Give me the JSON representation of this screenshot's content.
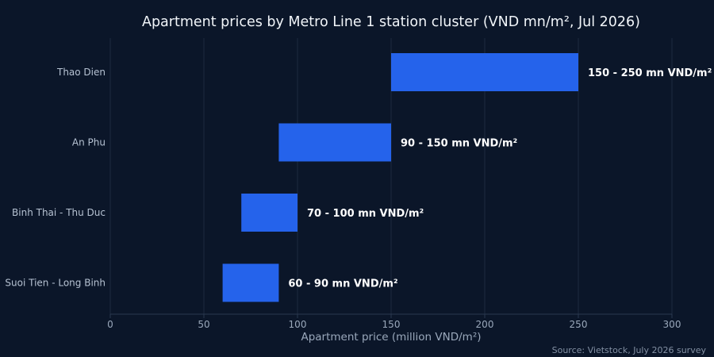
{
  "chart_data": {
    "type": "bar",
    "orientation": "horizontal",
    "title": "Apartment prices by Metro Line 1 station cluster (VND mn/m², Jul 2026)",
    "xlabel": "Apartment price (million VND/m²)",
    "ylabel": "",
    "xlim": [
      0,
      300
    ],
    "xticks": [
      0,
      50,
      100,
      150,
      200,
      250,
      300
    ],
    "grid": true,
    "bar_color": "#2563eb",
    "categories": [
      "Thao Dien",
      "An Phu",
      "Binh Thai - Thu Duc",
      "Suoi Tien - Long Binh"
    ],
    "ranges": [
      {
        "category": "Thao Dien",
        "low": 150,
        "high": 250,
        "label": "150 - 250 mn VND/m²"
      },
      {
        "category": "An Phu",
        "low": 90,
        "high": 150,
        "label": "90 - 150 mn VND/m²"
      },
      {
        "category": "Binh Thai - Thu Duc",
        "low": 70,
        "high": 100,
        "label": "70 - 100 mn VND/m²"
      },
      {
        "category": "Suoi Tien - Long Binh",
        "low": 60,
        "high": 90,
        "label": "60 - 90 mn VND/m²"
      }
    ],
    "source": "Source: Vietstock, July 2026 survey"
  }
}
